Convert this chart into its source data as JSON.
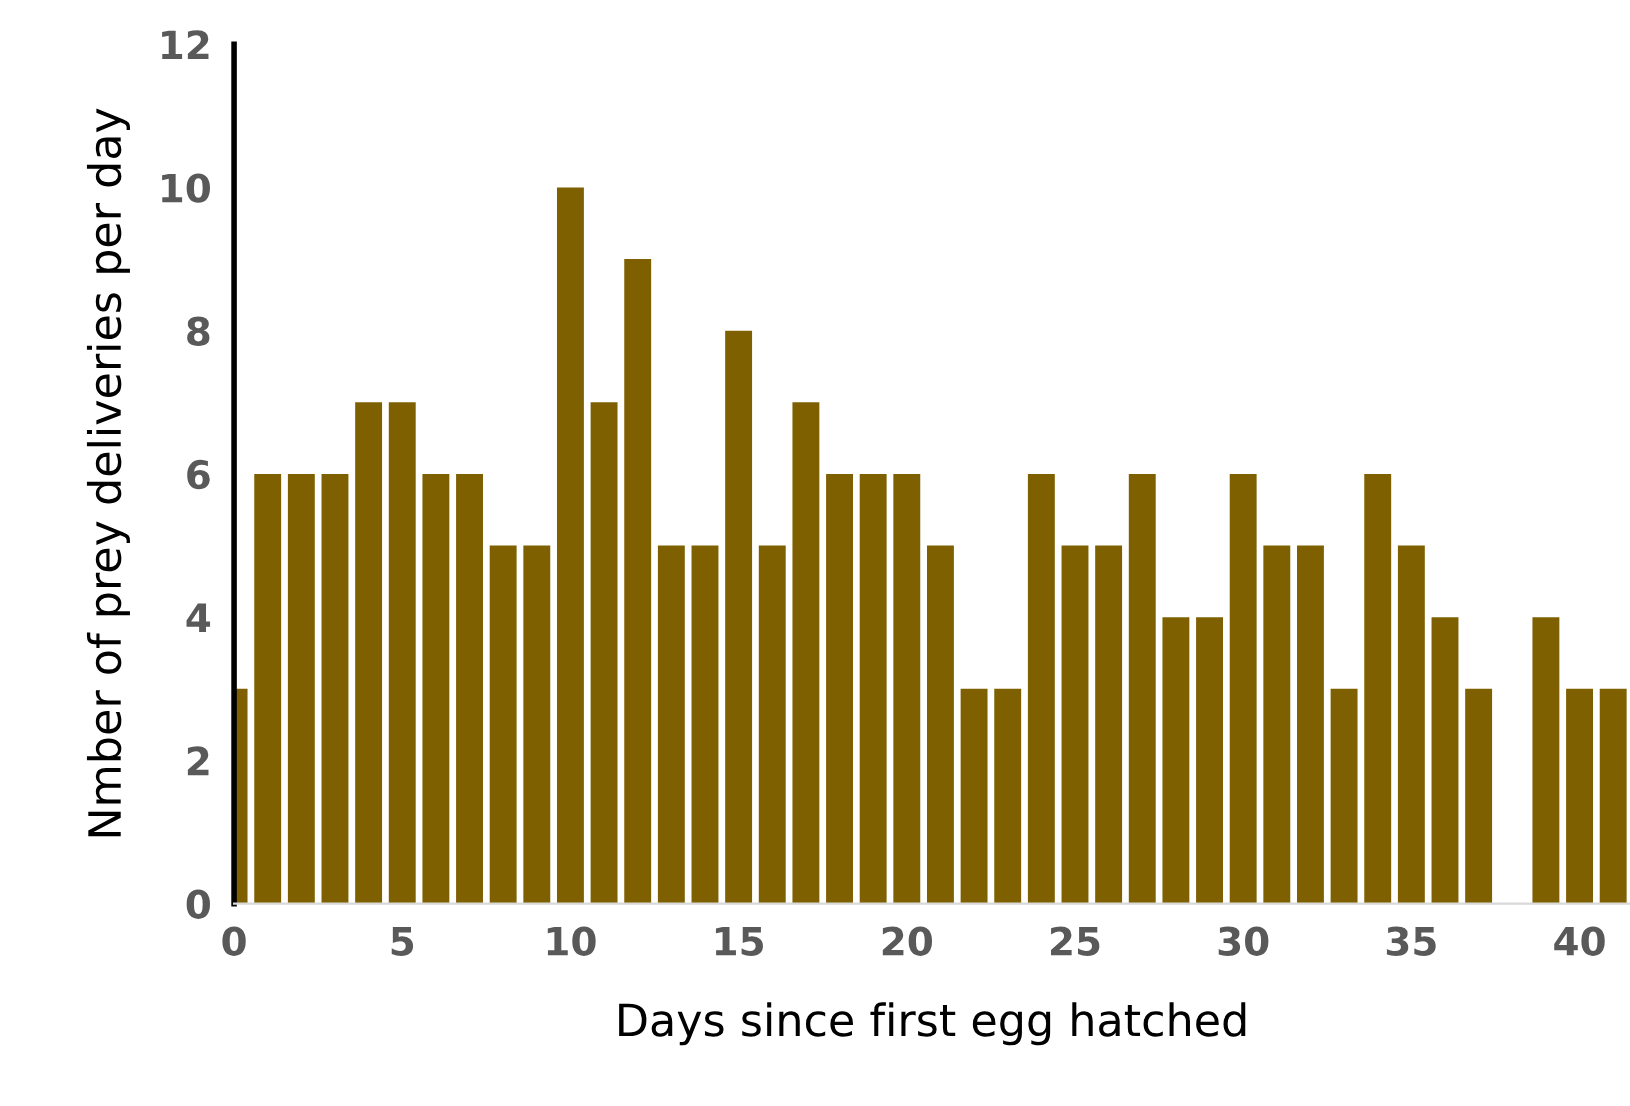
{
  "chart_data": {
    "type": "bar",
    "xlabel": "Days since first egg hatched",
    "ylabel": "Nmber of prey deliveries per day",
    "x": [
      0,
      1,
      2,
      3,
      4,
      5,
      6,
      7,
      8,
      9,
      10,
      11,
      12,
      13,
      14,
      15,
      16,
      17,
      18,
      19,
      20,
      21,
      22,
      23,
      24,
      25,
      26,
      27,
      28,
      29,
      30,
      31,
      32,
      33,
      34,
      35,
      36,
      37,
      38,
      39,
      40,
      41
    ],
    "values": [
      3,
      6,
      6,
      6,
      7,
      7,
      6,
      6,
      5,
      5,
      10,
      7,
      9,
      5,
      5,
      8,
      5,
      7,
      6,
      6,
      6,
      5,
      3,
      3,
      6,
      5,
      5,
      6,
      4,
      4,
      6,
      5,
      5,
      3,
      6,
      5,
      4,
      3,
      0,
      4,
      3,
      3
    ],
    "color": "#7f6000",
    "xlim": [
      0,
      41.5
    ],
    "xticks": [
      0,
      5,
      10,
      15,
      20,
      25,
      30,
      35,
      40
    ],
    "ylim": [
      0,
      12
    ],
    "yticks": [
      0,
      2,
      4,
      6,
      8,
      10,
      12
    ],
    "grid": false,
    "legend": false
  }
}
